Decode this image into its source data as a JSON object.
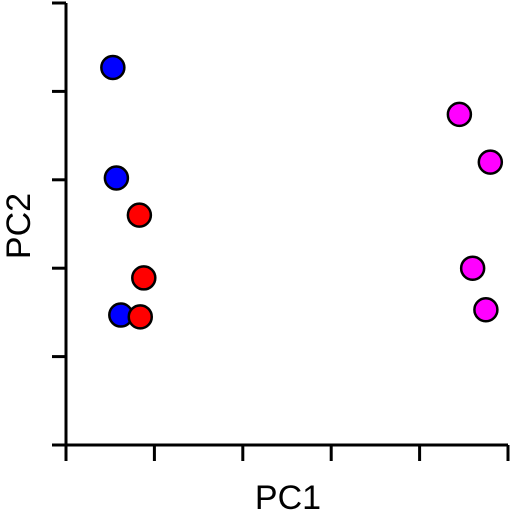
{
  "chart_data": {
    "type": "scatter",
    "title": "",
    "xlabel": "PC1",
    "ylabel": "PC2",
    "xlim": [
      0,
      5
    ],
    "ylim": [
      0,
      5
    ],
    "x_ticks": [
      0,
      1,
      2,
      3,
      4,
      5
    ],
    "y_ticks": [
      0,
      1,
      2,
      3,
      4,
      5
    ],
    "tick_labels_shown": false,
    "grid": false,
    "legend": "none",
    "series": [
      {
        "color": "#0000ff",
        "points": [
          {
            "x": 0.53,
            "y": 4.27
          },
          {
            "x": 0.57,
            "y": 3.02
          },
          {
            "x": 0.62,
            "y": 1.47
          }
        ]
      },
      {
        "color": "#ff0000",
        "points": [
          {
            "x": 0.83,
            "y": 2.6
          },
          {
            "x": 0.88,
            "y": 1.89
          },
          {
            "x": 0.84,
            "y": 1.45
          }
        ]
      },
      {
        "color": "#ff00ff",
        "points": [
          {
            "x": 4.45,
            "y": 3.74
          },
          {
            "x": 4.8,
            "y": 3.2
          },
          {
            "x": 4.6,
            "y": 2.0
          },
          {
            "x": 4.75,
            "y": 1.53
          }
        ]
      }
    ]
  }
}
